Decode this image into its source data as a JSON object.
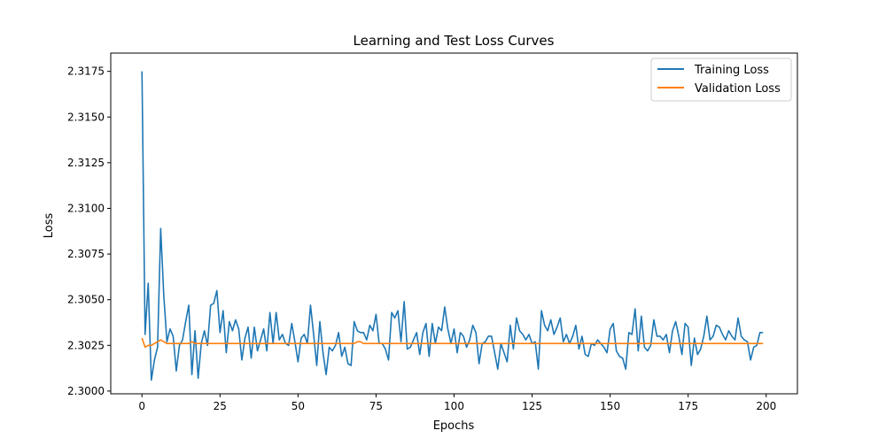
{
  "chart_data": {
    "type": "line",
    "title": "Learning and Test Loss Curves",
    "xlabel": "Epochs",
    "ylabel": "Loss",
    "xlim": [
      -10,
      210
    ],
    "ylim": [
      2.29985,
      2.3185
    ],
    "xticks": [
      0,
      25,
      50,
      75,
      100,
      125,
      150,
      175,
      200
    ],
    "yticks": [
      2.3,
      2.3025,
      2.305,
      2.3075,
      2.31,
      2.3125,
      2.315,
      2.3175
    ],
    "xtick_labels": [
      "0",
      "25",
      "50",
      "75",
      "100",
      "125",
      "150",
      "175",
      "200"
    ],
    "ytick_labels": [
      "2.3000",
      "2.3025",
      "2.3050",
      "2.3075",
      "2.3100",
      "2.3125",
      "2.3150",
      "2.3175"
    ],
    "grid": false,
    "legend_position": "top-right",
    "series": [
      {
        "name": "Training Loss",
        "color": "#1f77b4",
        "values": [
          2.3175,
          2.3031,
          2.3059,
          2.3006,
          2.3017,
          2.3024,
          2.3089,
          2.3052,
          2.3027,
          2.3034,
          2.303,
          2.3011,
          2.3025,
          2.3028,
          2.3038,
          2.3047,
          2.3009,
          2.3033,
          2.3007,
          2.3026,
          2.3033,
          2.3025,
          2.3047,
          2.3048,
          2.3055,
          2.3032,
          2.3044,
          2.3021,
          2.3038,
          2.3033,
          2.3039,
          2.3034,
          2.3017,
          2.3029,
          2.3035,
          2.3018,
          2.3035,
          2.3022,
          2.3028,
          2.3034,
          2.3022,
          2.3043,
          2.3026,
          2.3043,
          2.3028,
          2.3031,
          2.3026,
          2.3025,
          2.3037,
          2.3027,
          2.3016,
          2.3029,
          2.3031,
          2.3026,
          2.3047,
          2.3031,
          2.3014,
          2.3038,
          2.3021,
          2.3009,
          2.3024,
          2.3022,
          2.3025,
          2.3032,
          2.3019,
          2.3024,
          2.3015,
          2.3014,
          2.3038,
          2.3033,
          2.3032,
          2.3032,
          2.3028,
          2.3036,
          2.3033,
          2.3042,
          2.3026,
          2.3026,
          2.3023,
          2.3017,
          2.3043,
          2.304,
          2.3044,
          2.3027,
          2.3049,
          2.3023,
          2.3024,
          2.3028,
          2.3032,
          2.302,
          2.3032,
          2.3037,
          2.3019,
          2.3037,
          2.3026,
          2.3035,
          2.3033,
          2.3046,
          2.3034,
          2.3026,
          2.3034,
          2.3021,
          2.3032,
          2.303,
          2.3024,
          2.3028,
          2.3036,
          2.3032,
          2.3015,
          2.3026,
          2.3027,
          2.303,
          2.303,
          2.3021,
          2.3012,
          2.3026,
          2.3021,
          2.3016,
          2.3036,
          2.3023,
          2.304,
          2.3033,
          2.3031,
          2.3028,
          2.3031,
          2.3026,
          2.3027,
          2.3012,
          2.3044,
          2.3036,
          2.3033,
          2.3039,
          2.3031,
          2.3035,
          2.304,
          2.3027,
          2.3031,
          2.3026,
          2.303,
          2.3036,
          2.3023,
          2.303,
          2.302,
          2.3019,
          2.3026,
          2.3025,
          2.3028,
          2.3026,
          2.3024,
          2.3021,
          2.3034,
          2.3037,
          2.3022,
          2.3019,
          2.3018,
          2.3012,
          2.3032,
          2.3031,
          2.3045,
          2.3022,
          2.3041,
          2.3024,
          2.3022,
          2.3025,
          2.3039,
          2.303,
          2.303,
          2.3028,
          2.3031,
          2.3021,
          2.3033,
          2.3038,
          2.303,
          2.302,
          2.3037,
          2.3035,
          2.3014,
          2.3029,
          2.302,
          2.3023,
          2.303,
          2.3041,
          2.3028,
          2.303,
          2.3036,
          2.3035,
          2.3031,
          2.3028,
          2.3033,
          2.303,
          2.3028,
          2.304,
          2.303,
          2.3028,
          2.3027,
          2.3017,
          2.3024,
          2.3025,
          2.3032,
          2.3032
        ]
      },
      {
        "name": "Validation Loss",
        "color": "#ff7f0e",
        "values": [
          2.3029,
          2.3024,
          2.3025,
          2.3025,
          2.3026,
          2.3027,
          2.3028,
          2.3027,
          2.3026,
          2.3026,
          2.3026,
          2.3026,
          2.3026,
          2.3026,
          2.3026,
          2.3026,
          2.3027,
          2.3026,
          2.3026,
          2.3026,
          2.3026,
          2.3026,
          2.3026,
          2.3026,
          2.3026,
          2.3026,
          2.3026,
          2.3026,
          2.3026,
          2.3026,
          2.3026,
          2.3026,
          2.3026,
          2.3026,
          2.3026,
          2.3026,
          2.3026,
          2.3026,
          2.3026,
          2.3026,
          2.3026,
          2.3026,
          2.3026,
          2.3026,
          2.3026,
          2.3026,
          2.3026,
          2.3026,
          2.3026,
          2.3026,
          2.3026,
          2.3026,
          2.3026,
          2.3026,
          2.3026,
          2.3026,
          2.3026,
          2.3026,
          2.3026,
          2.3026,
          2.3026,
          2.3026,
          2.3026,
          2.3026,
          2.3026,
          2.3026,
          2.3026,
          2.3026,
          2.3026,
          2.3027,
          2.3027,
          2.3026,
          2.3026,
          2.3026,
          2.3026,
          2.3026,
          2.3026,
          2.3026,
          2.3026,
          2.3026,
          2.3026,
          2.3026,
          2.3026,
          2.3026,
          2.3026,
          2.3026,
          2.3026,
          2.3026,
          2.3026,
          2.3026,
          2.3026,
          2.3026,
          2.3026,
          2.3026,
          2.3026,
          2.3026,
          2.3026,
          2.3026,
          2.3026,
          2.3026,
          2.3026,
          2.3026,
          2.3026,
          2.3026,
          2.3026,
          2.3026,
          2.3026,
          2.3026,
          2.3026,
          2.3026,
          2.3026,
          2.3026,
          2.3026,
          2.3026,
          2.3026,
          2.3026,
          2.3026,
          2.3026,
          2.3026,
          2.3026,
          2.3026,
          2.3026,
          2.3026,
          2.3026,
          2.3026,
          2.3026,
          2.3026,
          2.3026,
          2.3026,
          2.3026,
          2.3026,
          2.3026,
          2.3026,
          2.3026,
          2.3026,
          2.3026,
          2.3026,
          2.3026,
          2.3026,
          2.3026,
          2.3026,
          2.3026,
          2.3026,
          2.3026,
          2.3026,
          2.3026,
          2.3026,
          2.3026,
          2.3026,
          2.3026,
          2.3026,
          2.3026,
          2.3026,
          2.3026,
          2.3026,
          2.3026,
          2.3026,
          2.3026,
          2.3026,
          2.3026,
          2.3026,
          2.3026,
          2.3026,
          2.3026,
          2.3026,
          2.3026,
          2.3026,
          2.3026,
          2.3026,
          2.3026,
          2.3026,
          2.3026,
          2.3026,
          2.3026,
          2.3026,
          2.3026,
          2.3026,
          2.3026,
          2.3026,
          2.3026,
          2.3026,
          2.3026,
          2.3026,
          2.3026,
          2.3026,
          2.3026,
          2.3026,
          2.3026,
          2.3026,
          2.3026,
          2.3026,
          2.3026,
          2.3026,
          2.3026,
          2.3026,
          2.3026,
          2.3026,
          2.3026,
          2.3026,
          2.3026
        ]
      }
    ]
  }
}
